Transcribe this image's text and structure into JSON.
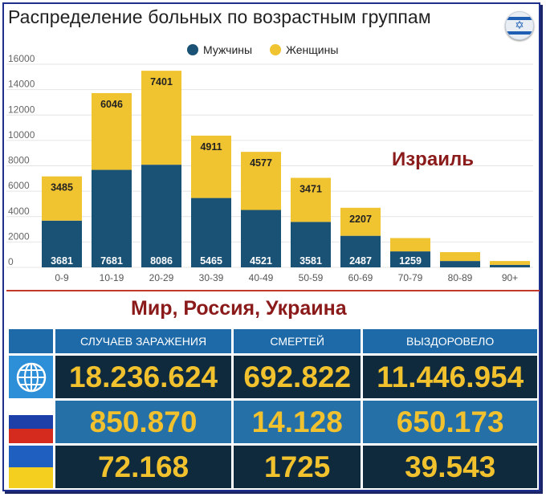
{
  "title": "Распределение больных по возрастным группам",
  "legend": {
    "men": "Мужчины",
    "women": "Женщины"
  },
  "colors": {
    "men": "#1a5276",
    "women": "#f0c330",
    "accent_red": "#8b1a1a"
  },
  "overlay_label": "Израиль",
  "chart_data": {
    "type": "bar",
    "stacked": true,
    "categories": [
      "0-9",
      "10-19",
      "20-29",
      "30-39",
      "40-49",
      "50-59",
      "60-69",
      "70-79",
      "80-89",
      "90+"
    ],
    "series": [
      {
        "name": "Мужчины",
        "values": [
          3681,
          7681,
          8086,
          5465,
          4521,
          3581,
          2487,
          1259,
          500,
          200
        ],
        "labels": [
          "3681",
          "7681",
          "8086",
          "5465",
          "4521",
          "3581",
          "2487",
          "1259",
          "",
          ""
        ]
      },
      {
        "name": "Женщины",
        "values": [
          3485,
          6046,
          7401,
          4911,
          4577,
          3471,
          2207,
          1050,
          700,
          300
        ],
        "labels": [
          "3485",
          "6046",
          "7401",
          "4911",
          "4577",
          "3471",
          "2207",
          "",
          "",
          ""
        ]
      }
    ],
    "yticks": [
      "0",
      "2000",
      "4000",
      "6000",
      "8000",
      "10000",
      "12000",
      "14000",
      "16000"
    ],
    "ylim": [
      0,
      16000
    ],
    "grid": true,
    "legend_position": "top"
  },
  "world_section": {
    "title": "Мир, Россия, Украина",
    "headers": [
      "СЛУЧАЕВ ЗАРАЖЕНИЯ",
      "СМЕРТЕЙ",
      "ВЫЗДОРОВЕЛО"
    ],
    "rows": [
      {
        "flag": "globe-icon",
        "values": [
          "18.236.624",
          "692.822",
          "11.446.954"
        ]
      },
      {
        "flag": "russia-flag-icon",
        "values": [
          "850.870",
          "14.128",
          "650.173"
        ]
      },
      {
        "flag": "ukraine-flag-icon",
        "values": [
          "72.168",
          "1725",
          "39.543"
        ]
      }
    ]
  }
}
